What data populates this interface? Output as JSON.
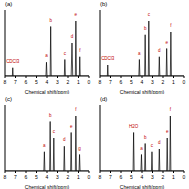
{
  "chart_data": [
    {
      "type": "line",
      "title": "(a)",
      "x_label": "Chemical shift(ppm)",
      "xlim": [
        8,
        0
      ],
      "xticks": [
        8,
        7,
        6,
        5,
        4,
        3,
        2,
        1,
        0
      ],
      "ylim": [
        0,
        1.2
      ],
      "tick_labels": "x",
      "color": "#000000",
      "x": [
        8,
        7.3,
        7.26,
        7.22,
        6,
        4.1,
        4.05,
        4.0,
        3.7,
        3.65,
        3.6,
        3.0,
        2.35,
        2.3,
        2.25,
        1.7,
        1.62,
        1.55,
        1.3,
        1.25,
        1.2,
        0.92,
        0.88,
        0.84,
        0
      ],
      "values": [
        0,
        0,
        0.15,
        0,
        0,
        0,
        0.25,
        0,
        0,
        0.9,
        0,
        0,
        0,
        0.3,
        0,
        0,
        0.6,
        0,
        0,
        1,
        0,
        0,
        0.35,
        0,
        0
      ],
      "annotations": [
        {
          "text": "CDCl3",
          "x": 7.26,
          "y": 0.15
        },
        {
          "text": "a",
          "x": 4.05,
          "y": 0.25
        },
        {
          "text": "b",
          "x": 3.65,
          "y": 0.9
        },
        {
          "text": "c",
          "x": 2.3,
          "y": 0.3
        },
        {
          "text": "d",
          "x": 1.62,
          "y": 0.6
        },
        {
          "text": "e",
          "x": 1.25,
          "y": 1
        },
        {
          "text": "f",
          "x": 0.88,
          "y": 0.35
        }
      ]
    },
    {
      "type": "line",
      "title": "(b)",
      "x_label": "Chemical shift(ppm)",
      "xlim": [
        8,
        0
      ],
      "xticks": [
        8,
        7,
        6,
        5,
        4,
        3,
        2,
        1,
        0
      ],
      "ylim": [
        0,
        1.2
      ],
      "tick_labels": "x",
      "color": "#000000",
      "x": [
        8,
        7.3,
        7.26,
        7.22,
        6,
        4.3,
        4.25,
        4.2,
        3.75,
        3.7,
        3.65,
        3.4,
        3.35,
        3.3,
        2.4,
        2.35,
        2.3,
        1.7,
        1.65,
        1.6,
        1.3,
        1.25,
        1.2,
        0
      ],
      "values": [
        0,
        0,
        0.2,
        0,
        0,
        0,
        0.3,
        0,
        0,
        0.75,
        0,
        0,
        1,
        0,
        0,
        0.35,
        0,
        0,
        0.5,
        0,
        0,
        0.8,
        0,
        0
      ],
      "annotations": [
        {
          "text": "CDCl3",
          "x": 7.26,
          "y": 0.2
        },
        {
          "text": "a",
          "x": 4.25,
          "y": 0.3
        },
        {
          "text": "b",
          "x": 3.7,
          "y": 0.75
        },
        {
          "text": "c",
          "x": 3.35,
          "y": 1
        },
        {
          "text": "d",
          "x": 2.35,
          "y": 0.35
        },
        {
          "text": "e",
          "x": 1.65,
          "y": 0.5
        },
        {
          "text": "f",
          "x": 1.25,
          "y": 0.8
        }
      ]
    },
    {
      "type": "line",
      "title": "(c)",
      "x_label": "Chemical shift(ppm)",
      "xlim": [
        8,
        0
      ],
      "xticks": [
        8,
        7,
        6,
        5,
        4,
        3,
        2,
        1,
        0
      ],
      "ylim": [
        0,
        1.2
      ],
      "tick_labels": "x",
      "color": "#000000",
      "x": [
        8,
        5.5,
        4.3,
        4.25,
        4.2,
        3.75,
        3.7,
        3.65,
        3.4,
        3.35,
        3.3,
        2.4,
        2.35,
        2.3,
        1.75,
        1.7,
        1.65,
        1.3,
        1.25,
        1.2,
        0.95,
        0.9,
        0.85,
        0
      ],
      "values": [
        0,
        0,
        0,
        0.35,
        0,
        0,
        0.9,
        0,
        0,
        0.6,
        0,
        0,
        0.45,
        0,
        0,
        0.7,
        0,
        0,
        1,
        0,
        0,
        0.3,
        0,
        0
      ],
      "annotations": [
        {
          "text": "a",
          "x": 4.25,
          "y": 0.35
        },
        {
          "text": "b",
          "x": 3.7,
          "y": 0.9
        },
        {
          "text": "c",
          "x": 3.35,
          "y": 0.6
        },
        {
          "text": "d",
          "x": 2.35,
          "y": 0.45
        },
        {
          "text": "e",
          "x": 1.7,
          "y": 0.7
        },
        {
          "text": "f",
          "x": 1.25,
          "y": 1
        },
        {
          "text": "g",
          "x": 0.9,
          "y": 0.3
        }
      ]
    },
    {
      "type": "line",
      "title": "(d)",
      "x_label": "Chemical shift(ppm)",
      "xlim": [
        8,
        0
      ],
      "xticks": [
        8,
        7,
        6,
        5,
        4,
        3,
        2,
        1,
        0
      ],
      "ylim": [
        0,
        1.2
      ],
      "tick_labels": "x",
      "color": "#000000",
      "x": [
        8,
        6,
        4.85,
        4.8,
        4.75,
        4.1,
        4.05,
        4.0,
        3.75,
        3.7,
        3.65,
        3.1,
        3.05,
        3.0,
        2.4,
        2.35,
        2.3,
        1.65,
        1.6,
        1.55,
        1.35,
        1.3,
        1.25,
        0
      ],
      "values": [
        0,
        0,
        0,
        0.7,
        0,
        0,
        0.3,
        0,
        0,
        0.5,
        0,
        0,
        0.35,
        0,
        0,
        0.4,
        0,
        0,
        0.6,
        0,
        0,
        1,
        0,
        0
      ],
      "annotations": [
        {
          "text": "H2O",
          "x": 4.8,
          "y": 0.7
        },
        {
          "text": "a",
          "x": 4.05,
          "y": 0.3
        },
        {
          "text": "b",
          "x": 3.7,
          "y": 0.5
        },
        {
          "text": "c",
          "x": 3.05,
          "y": 0.35
        },
        {
          "text": "d",
          "x": 2.35,
          "y": 0.4
        },
        {
          "text": "e",
          "x": 1.6,
          "y": 0.6
        },
        {
          "text": "f",
          "x": 1.3,
          "y": 1
        }
      ]
    }
  ]
}
